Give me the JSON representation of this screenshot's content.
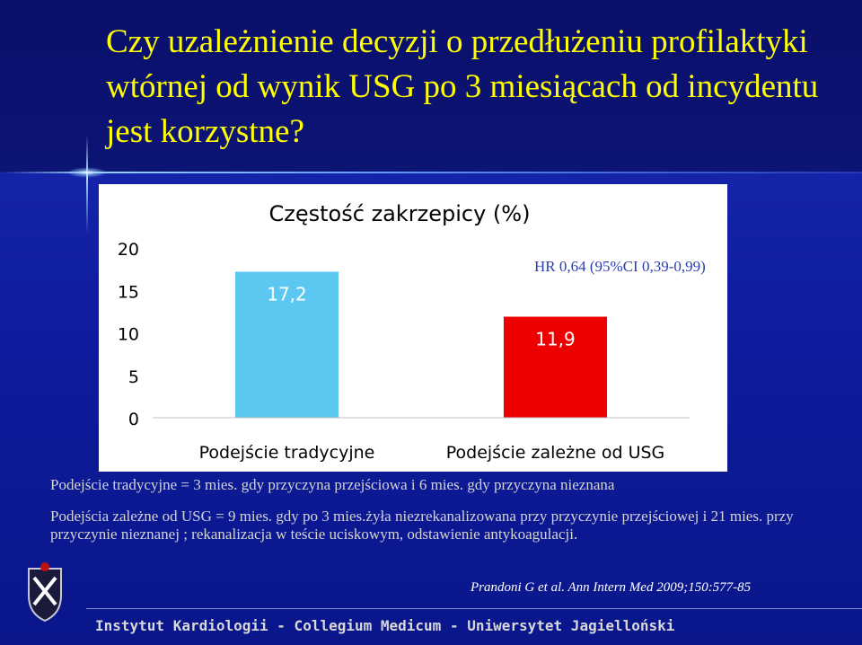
{
  "slide": {
    "title": "Czy uzależnienie decyzji o przedłużeniu profilaktyki wtórnej od wynik USG po 3 miesiącach od incydentu jest korzystne?",
    "note_line1": "Podejście tradycyjne = 3 mies. gdy przyczyna przejściowa i 6 mies. gdy przyczyna nieznana",
    "note_line2": "Podejścia zależne od USG  = 9 mies. gdy po 3 mies.żyła niezrekanalizowana przy przyczynie przejściowej i 21 mies. przy przyczynie nieznanej ; rekanalizacja w teście uciskowym, odstawienie antykoagulacji.",
    "citation": "Prandoni G et al. Ann Intern Med 2009;150:577-85",
    "footer": "Instytut Kardiologii - Collegium Medicum - Uniwersytet Jagielloński"
  },
  "chart_data": {
    "type": "bar",
    "title": "Częstość zakrzepicy (%)",
    "categories": [
      "Podejście tradycyjne",
      "Podejście zależne od USG"
    ],
    "values": [
      17.2,
      11.9
    ],
    "value_labels": [
      "17,2",
      "11,9"
    ],
    "bar_colors": [
      "#5cc8f2",
      "#ee0000"
    ],
    "ylim": [
      0,
      20
    ],
    "yticks": [
      0,
      5,
      10,
      15,
      20
    ],
    "grid": false,
    "annotation": "HR 0,64 (95%CI 0,39-0,99)"
  }
}
